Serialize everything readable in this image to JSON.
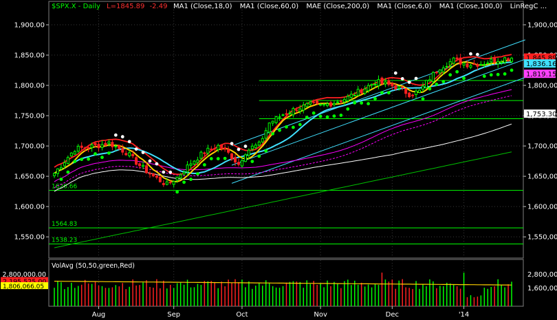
{
  "chart_data": {
    "type": "candlestick",
    "header": {
      "symbol": "$SPX.X - Daily",
      "last": "L=1845.89",
      "change": "-2.49",
      "indicators": [
        "MA1 (Close,18,0)",
        "MA1 (Close,60,0)",
        "MAE (Close,200,0)",
        "MA1 (Close,6,0)",
        "MA1 (Close,100,0)",
        "LinRegC ..."
      ]
    },
    "price_axis": {
      "ylim": [
        1515,
        1925
      ],
      "ticks": [
        1550,
        1600,
        1650,
        1700,
        1750,
        1800,
        1850,
        1900
      ],
      "tick_labels_left": [
        "1,550.00",
        "1,600.00",
        "1,650.00",
        "1,700.00",
        "1,750.00",
        "1,800.00",
        "1,850.00",
        "1,900.00"
      ],
      "tick_labels_right": [
        "1,550,00",
        "1,600,00",
        "1,650,00",
        "1,700,00",
        "1,750,00",
        "1,800,00",
        "1,850,00",
        "1,900,00"
      ]
    },
    "x_axis": {
      "months": [
        {
          "label": "Aug",
          "bar": 13
        },
        {
          "label": "Sep",
          "bar": 35
        },
        {
          "label": "Oct",
          "bar": 55
        },
        {
          "label": "Nov",
          "bar": 78
        },
        {
          "label": "Dec",
          "bar": 99
        },
        {
          "label": "'14",
          "bar": 120
        }
      ]
    },
    "bars_count": 135,
    "close_path": [
      [
        0,
        1655
      ],
      [
        6,
        1695
      ],
      [
        12,
        1700
      ],
      [
        16,
        1705
      ],
      [
        21,
        1690
      ],
      [
        25,
        1668
      ],
      [
        29,
        1650
      ],
      [
        33,
        1636
      ],
      [
        36,
        1648
      ],
      [
        40,
        1672
      ],
      [
        44,
        1690
      ],
      [
        48,
        1700
      ],
      [
        51,
        1688
      ],
      [
        54,
        1670
      ],
      [
        56,
        1690
      ],
      [
        58,
        1698
      ],
      [
        60,
        1702
      ],
      [
        63,
        1738
      ],
      [
        67,
        1752
      ],
      [
        71,
        1762
      ],
      [
        75,
        1768
      ],
      [
        78,
        1766
      ],
      [
        82,
        1772
      ],
      [
        86,
        1780
      ],
      [
        90,
        1792
      ],
      [
        94,
        1806
      ],
      [
        97,
        1802
      ],
      [
        100,
        1798
      ],
      [
        104,
        1786
      ],
      [
        107,
        1790
      ],
      [
        110,
        1812
      ],
      [
        113,
        1830
      ],
      [
        117,
        1842
      ],
      [
        121,
        1835
      ],
      [
        125,
        1836
      ],
      [
        129,
        1842
      ],
      [
        134,
        1846
      ]
    ],
    "last_price": 1845.89,
    "support_lines": [
      {
        "value": 1626.66,
        "label": "1626.66"
      },
      {
        "value": 1564.83,
        "label": "1564.83"
      },
      {
        "value": 1538.23,
        "label": "1538.23"
      }
    ],
    "extra_levels": [
      1808,
      1775,
      1745
    ],
    "right_labels": [
      {
        "value": 1845.89,
        "text": "1,845.89",
        "bg": "#ff2020"
      },
      {
        "value": 1836.16,
        "text": "1,836.16",
        "bg": "#40e0ff"
      },
      {
        "value": 1819.15,
        "text": "1,819.15",
        "bg": "#ff40ff"
      },
      {
        "value": 1753.3,
        "text": "1,753.30",
        "bg": "#ffffff"
      }
    ],
    "volume": {
      "title": "VolAvg (50,50,green,Red)",
      "ylim": [
        0,
        3200000
      ],
      "tick_labels_left": [
        "2,800,000.00"
      ],
      "tick_values_left": [
        2800000
      ],
      "tick_labels_right": [
        "2,800,00",
        "1,600,00"
      ],
      "tick_values_right": [
        2800000,
        1600000
      ],
      "avg_label": "2,195,525.00",
      "avg_value": 2195525,
      "avg2_label": "1,806,066.05",
      "avg2_value": 1806066
    },
    "colors": {
      "up": "#00ff00",
      "down": "#ff2020",
      "ma18": "#40e0ff",
      "ma6": "#ffd000",
      "ma60": "#ff00ff",
      "ma100": "#ffffff",
      "mae": "#ff2020",
      "ma200": "#00c000",
      "channel": "#40e0ff",
      "support": "#00ff00",
      "header_symbol": "#00ff00",
      "header_last": "#ff3030",
      "header_text": "#ffffff"
    }
  }
}
